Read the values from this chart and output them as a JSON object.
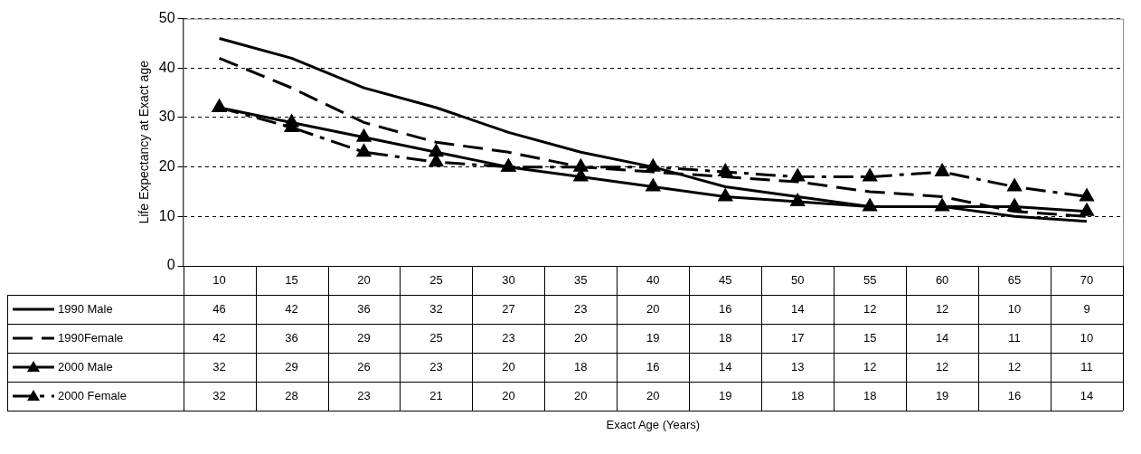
{
  "chart_data": {
    "type": "line",
    "annotations": [
      "Exact Age (Years)"
    ],
    "ylabel": "Life Expectancy at Exact age",
    "categories": [
      "10",
      "15",
      "20",
      "25",
      "30",
      "35",
      "40",
      "45",
      "50",
      "55",
      "60",
      "65",
      "70"
    ],
    "series": [
      {
        "name": "1990 Male",
        "color": "#000000",
        "line_style": "solid",
        "marker": "none",
        "values": [
          46,
          42,
          36,
          32,
          27,
          23,
          20,
          16,
          14,
          12,
          12,
          10,
          9
        ]
      },
      {
        "name": "1990Female",
        "color": "#000000",
        "line_style": "dashed",
        "marker": "none",
        "values": [
          42,
          36,
          29,
          25,
          23,
          20,
          19,
          18,
          17,
          15,
          14,
          11,
          10
        ]
      },
      {
        "name": "2000 Male",
        "color": "#000000",
        "line_style": "solid",
        "marker": "triangle",
        "values": [
          32,
          29,
          26,
          23,
          20,
          18,
          16,
          14,
          13,
          12,
          12,
          12,
          11
        ]
      },
      {
        "name": "2000 Female",
        "color": "#000000",
        "line_style": "dashdot",
        "marker": "triangle",
        "values": [
          32,
          28,
          23,
          21,
          20,
          20,
          20,
          19,
          18,
          18,
          19,
          16,
          14
        ]
      }
    ],
    "ylim": [
      0,
      50
    ],
    "yticks": [
      0,
      10,
      20,
      30,
      40,
      50
    ],
    "grid": "y",
    "legend": "bottom left",
    "data_labels": true
  }
}
